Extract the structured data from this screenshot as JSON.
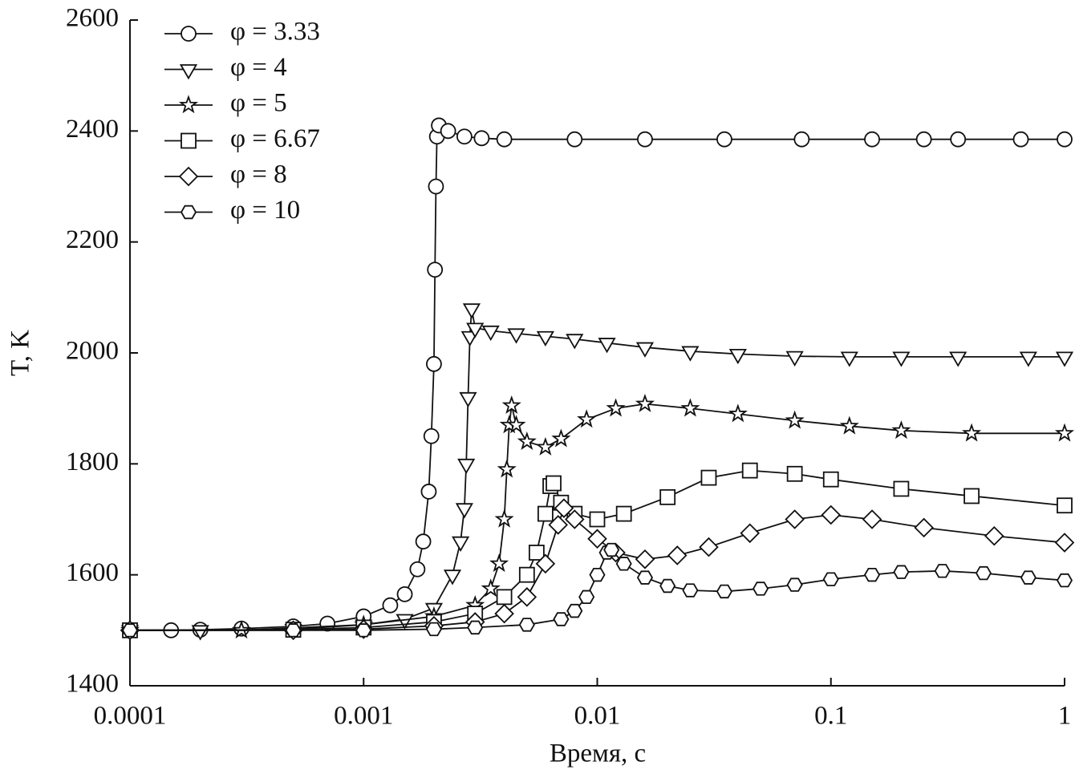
{
  "chart_data": {
    "type": "line",
    "x_scale": "log",
    "grid": false,
    "legend": "top-left",
    "xlabel": "Время, с",
    "ylabel": "T, K",
    "xlim": [
      0.0001,
      1
    ],
    "xticks": [
      0.0001,
      0.001,
      0.01,
      0.1,
      1
    ],
    "ylim": [
      1400,
      2600
    ],
    "yticks": [
      1400,
      1600,
      1800,
      2000,
      2200,
      2400,
      2600
    ],
    "series": [
      {
        "name": "φ = 3.33",
        "color": "#111111",
        "marker": "circle",
        "x": [
          0.0001,
          0.00015,
          0.0002,
          0.0003,
          0.0005,
          0.0007,
          0.001,
          0.0013,
          0.0015,
          0.0017,
          0.0018,
          0.0019,
          0.00195,
          0.002,
          0.00202,
          0.00204,
          0.00206,
          0.0021,
          0.0023,
          0.0027,
          0.0032,
          0.004,
          0.008,
          0.016,
          0.035,
          0.075,
          0.15,
          0.25,
          0.35,
          0.65,
          1
        ],
        "values": [
          1500,
          1500,
          1501,
          1503,
          1507,
          1512,
          1525,
          1545,
          1565,
          1610,
          1660,
          1750,
          1850,
          1980,
          2150,
          2300,
          2390,
          2410,
          2400,
          2390,
          2387,
          2385,
          2385,
          2385,
          2385,
          2385,
          2385,
          2385,
          2385,
          2385,
          2385
        ]
      },
      {
        "name": "φ = 4",
        "color": "#111111",
        "marker": "triangle-down",
        "x": [
          0.0001,
          0.0002,
          0.0005,
          0.001,
          0.0015,
          0.002,
          0.0024,
          0.0026,
          0.0027,
          0.00275,
          0.0028,
          0.00285,
          0.0029,
          0.003,
          0.0035,
          0.0045,
          0.006,
          0.008,
          0.011,
          0.016,
          0.025,
          0.04,
          0.07,
          0.12,
          0.2,
          0.35,
          0.7,
          1
        ],
        "values": [
          1500,
          1500,
          1502,
          1510,
          1520,
          1540,
          1600,
          1660,
          1720,
          1800,
          1920,
          2030,
          2080,
          2045,
          2040,
          2035,
          2030,
          2025,
          2018,
          2010,
          2003,
          1998,
          1994,
          1993,
          1993,
          1993,
          1993,
          1993
        ]
      },
      {
        "name": "φ = 5",
        "color": "#111111",
        "marker": "star",
        "x": [
          0.0001,
          0.0003,
          0.001,
          0.002,
          0.003,
          0.0035,
          0.0038,
          0.004,
          0.0041,
          0.0042,
          0.0043,
          0.0045,
          0.005,
          0.006,
          0.007,
          0.009,
          0.012,
          0.016,
          0.025,
          0.04,
          0.07,
          0.12,
          0.2,
          0.4,
          1
        ],
        "values": [
          1500,
          1500,
          1510,
          1525,
          1545,
          1575,
          1620,
          1700,
          1790,
          1870,
          1905,
          1870,
          1840,
          1830,
          1845,
          1880,
          1900,
          1908,
          1900,
          1890,
          1878,
          1868,
          1860,
          1855,
          1855
        ]
      },
      {
        "name": "φ = 6.67",
        "color": "#111111",
        "marker": "square",
        "x": [
          0.0001,
          0.0005,
          0.001,
          0.002,
          0.003,
          0.004,
          0.005,
          0.0055,
          0.006,
          0.0063,
          0.0065,
          0.007,
          0.008,
          0.01,
          0.013,
          0.02,
          0.03,
          0.045,
          0.07,
          0.1,
          0.2,
          0.4,
          1
        ],
        "values": [
          1500,
          1501,
          1505,
          1515,
          1530,
          1560,
          1600,
          1640,
          1710,
          1760,
          1765,
          1730,
          1710,
          1700,
          1710,
          1740,
          1775,
          1788,
          1782,
          1772,
          1755,
          1742,
          1725
        ]
      },
      {
        "name": "φ = 8",
        "color": "#111111",
        "marker": "diamond",
        "x": [
          0.0001,
          0.0005,
          0.001,
          0.002,
          0.003,
          0.004,
          0.005,
          0.006,
          0.0068,
          0.0072,
          0.008,
          0.01,
          0.012,
          0.016,
          0.022,
          0.03,
          0.045,
          0.07,
          0.1,
          0.15,
          0.25,
          0.5,
          1
        ],
        "values": [
          1500,
          1500,
          1502,
          1508,
          1515,
          1530,
          1560,
          1620,
          1690,
          1720,
          1700,
          1665,
          1640,
          1628,
          1635,
          1650,
          1675,
          1700,
          1708,
          1700,
          1685,
          1670,
          1658
        ]
      },
      {
        "name": "φ = 10",
        "color": "#111111",
        "marker": "hexagon",
        "x": [
          0.0001,
          0.0005,
          0.001,
          0.002,
          0.003,
          0.005,
          0.007,
          0.008,
          0.009,
          0.01,
          0.011,
          0.0115,
          0.013,
          0.016,
          0.02,
          0.025,
          0.035,
          0.05,
          0.07,
          0.1,
          0.15,
          0.2,
          0.3,
          0.45,
          0.7,
          1
        ],
        "values": [
          1500,
          1500,
          1500,
          1502,
          1505,
          1510,
          1520,
          1535,
          1560,
          1600,
          1640,
          1645,
          1620,
          1595,
          1580,
          1572,
          1570,
          1575,
          1582,
          1592,
          1600,
          1605,
          1607,
          1603,
          1595,
          1590
        ]
      }
    ]
  }
}
